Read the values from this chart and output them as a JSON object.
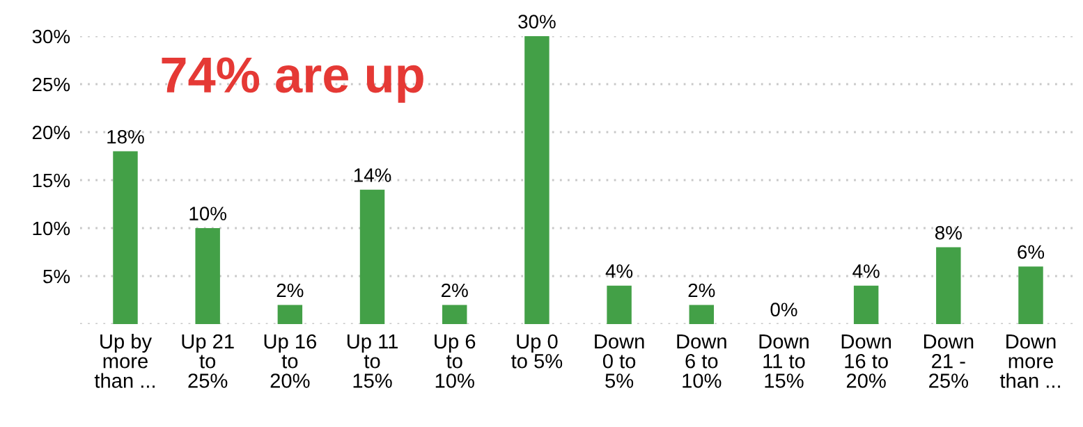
{
  "chart_data": {
    "type": "bar",
    "categories": [
      "Up by\nmore\nthan ...",
      "Up 21\nto\n25%",
      "Up 16\nto\n20%",
      "Up 11\nto\n15%",
      "Up 6\nto\n10%",
      "Up 0\nto 5%",
      "Down\n0 to\n5%",
      "Down\n6 to\n10%",
      "Down\n11 to\n15%",
      "Down\n16 to\n20%",
      "Down\n21 -\n25%",
      "Down\nmore\nthan ..."
    ],
    "values": [
      18,
      10,
      2,
      14,
      2,
      30,
      4,
      2,
      0,
      4,
      8,
      6
    ],
    "value_labels": [
      "18%",
      "10%",
      "2%",
      "14%",
      "2%",
      "30%",
      "4%",
      "2%",
      "0%",
      "4%",
      "8%",
      "6%"
    ],
    "color": "#43a047",
    "ylim": [
      0,
      30
    ],
    "yticks": [
      {
        "value": 0,
        "label": null
      },
      {
        "value": 5,
        "label": "5%"
      },
      {
        "value": 10,
        "label": "10%"
      },
      {
        "value": 15,
        "label": "15%"
      },
      {
        "value": 20,
        "label": "20%"
      },
      {
        "value": 25,
        "label": "25%"
      },
      {
        "value": 30,
        "label": "30%"
      }
    ],
    "grid": "y",
    "annotations": [
      "74% are up"
    ]
  }
}
